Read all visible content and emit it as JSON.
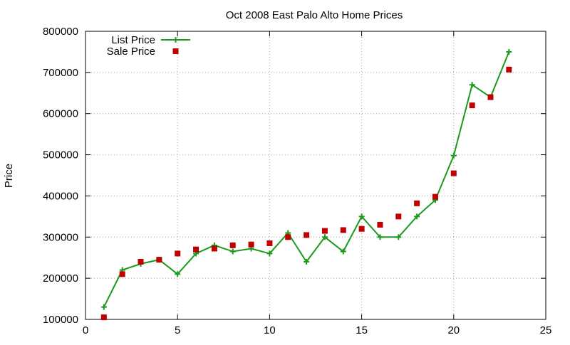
{
  "chart_data": {
    "type": "line",
    "title": "Oct 2008 East Palo Alto Home Prices",
    "xlabel": "",
    "ylabel": "Price",
    "xlim": [
      0,
      25
    ],
    "ylim": [
      100000,
      800000
    ],
    "x_ticks": [
      0,
      5,
      10,
      15,
      20,
      25
    ],
    "y_ticks": [
      100000,
      200000,
      300000,
      400000,
      500000,
      600000,
      700000,
      800000
    ],
    "grid": true,
    "legend_position": "top-left",
    "series": [
      {
        "name": "List Price",
        "style": "lines+crosses",
        "color": "#1a9a1a",
        "x": [
          1,
          2,
          3,
          4,
          5,
          6,
          7,
          8,
          9,
          10,
          11,
          12,
          13,
          14,
          15,
          16,
          17,
          18,
          19,
          20,
          21,
          22,
          23
        ],
        "y": [
          130000,
          220000,
          235000,
          245000,
          210000,
          260000,
          280000,
          265000,
          272000,
          260000,
          310000,
          240000,
          300000,
          265000,
          350000,
          300000,
          300000,
          350000,
          390000,
          498000,
          670000,
          640000,
          750000
        ]
      },
      {
        "name": "Sale Price",
        "style": "squares",
        "color": "#c00000",
        "x": [
          1,
          2,
          3,
          4,
          5,
          6,
          7,
          8,
          9,
          10,
          11,
          12,
          13,
          14,
          15,
          16,
          17,
          18,
          19,
          20,
          21,
          22,
          23
        ],
        "y": [
          105000,
          210000,
          240000,
          245000,
          260000,
          270000,
          272000,
          280000,
          282000,
          285000,
          300000,
          305000,
          315000,
          317000,
          320000,
          330000,
          350000,
          382000,
          398000,
          455000,
          620000,
          640000,
          707000
        ]
      }
    ]
  }
}
